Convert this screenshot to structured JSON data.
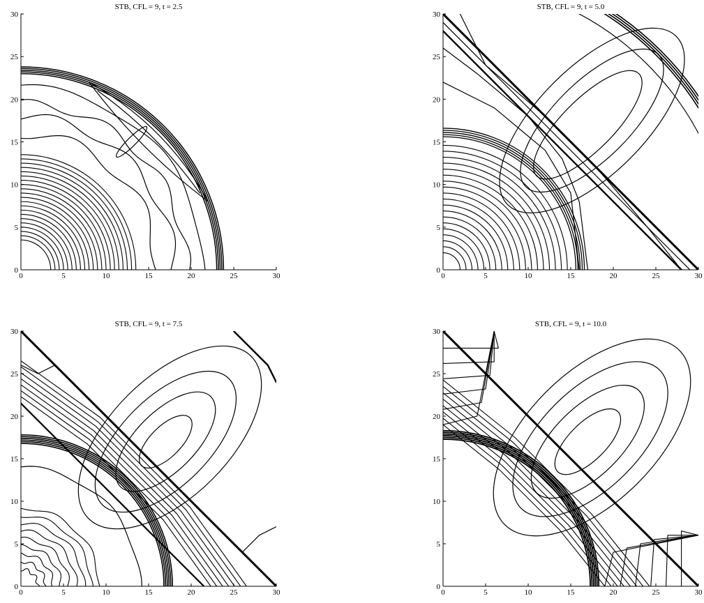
{
  "figure": {
    "panels": [
      {
        "title": "STB, CFL = 9, t = 2.5",
        "time": 2.5,
        "xlim": [
          0,
          30
        ],
        "ylim": [
          0,
          30
        ],
        "xticks": [
          "0",
          "5",
          "10",
          "15",
          "20",
          "25",
          "30"
        ],
        "yticks": [
          "0",
          "5",
          "10",
          "15",
          "20",
          "25",
          "30"
        ],
        "shock_radius": 23.5,
        "inner_front_radius": 15,
        "oblique_front": [
          [
            0,
            30
          ],
          [
            30,
            0
          ]
        ],
        "oblique_front_visible": false
      },
      {
        "title": "STB, CFL = 9, t = 5.0",
        "time": 5.0,
        "xlim": [
          0,
          30
        ],
        "ylim": [
          0,
          30
        ],
        "xticks": [
          "0",
          "5",
          "10",
          "15",
          "20",
          "25",
          "30"
        ],
        "yticks": [
          "0",
          "5",
          "10",
          "15",
          "20",
          "25",
          "30"
        ],
        "shock_radius": 36,
        "inner_front_radius": 16.5,
        "oblique_front": [
          [
            0,
            30
          ],
          [
            30,
            0
          ]
        ],
        "oblique_front_visible": true
      },
      {
        "title": "STB, CFL = 9, t = 7.5",
        "time": 7.5,
        "xlim": [
          0,
          30
        ],
        "ylim": [
          0,
          30
        ],
        "xticks": [
          "0",
          "5",
          "10",
          "15",
          "20",
          "25",
          "30"
        ],
        "yticks": [
          "0",
          "5",
          "10",
          "15",
          "20",
          "25",
          "30"
        ],
        "shock_radius": 17.5,
        "inner_front_radius": 17.5,
        "oblique_front": [
          [
            0,
            30
          ],
          [
            30,
            0
          ]
        ],
        "oblique_front_visible": true
      },
      {
        "title": "STB, CFL = 9, t = 10.0",
        "time": 10.0,
        "xlim": [
          0,
          30
        ],
        "ylim": [
          0,
          30
        ],
        "xticks": [
          "0",
          "5",
          "10",
          "15",
          "20",
          "25",
          "30"
        ],
        "yticks": [
          "0",
          "5",
          "10",
          "15",
          "20",
          "25",
          "30"
        ],
        "shock_radius": 18,
        "inner_front_radius": 18,
        "oblique_front": [
          [
            0,
            30
          ],
          [
            30,
            0
          ]
        ],
        "oblique_front_visible": true
      }
    ]
  },
  "chart_data": [
    {
      "type": "contour",
      "title": "STB, CFL = 9, t = 2.5",
      "xlim": [
        0,
        30
      ],
      "ylim": [
        0,
        30
      ],
      "xticks": [
        0,
        5,
        10,
        15,
        20,
        25,
        30
      ],
      "yticks": [
        0,
        5,
        10,
        15,
        20,
        25,
        30
      ],
      "features": {
        "circular_shock_radius": 23.5,
        "concentric_contours_radius_range": [
          3,
          14
        ],
        "lens_between": [
          [
            8,
            22
          ],
          [
            22,
            8
          ]
        ]
      }
    },
    {
      "type": "contour",
      "title": "STB, CFL = 9, t = 5.0",
      "xlim": [
        0,
        30
      ],
      "ylim": [
        0,
        30
      ],
      "xticks": [
        0,
        5,
        10,
        15,
        20,
        25,
        30
      ],
      "yticks": [
        0,
        5,
        10,
        15,
        20,
        25,
        30
      ],
      "features": {
        "oblique_discontinuity": [
          [
            0,
            30
          ],
          [
            30,
            0
          ]
        ],
        "inner_front_radius": 16.5,
        "outer_front_radius": 36,
        "concentric_contours_radius_range": [
          2,
          15
        ]
      }
    },
    {
      "type": "contour",
      "title": "STB, CFL = 9, t = 7.5",
      "xlim": [
        0,
        30
      ],
      "ylim": [
        0,
        30
      ],
      "xticks": [
        0,
        5,
        10,
        15,
        20,
        25,
        30
      ],
      "yticks": [
        0,
        5,
        10,
        15,
        20,
        25,
        30
      ],
      "features": {
        "oblique_discontinuity": [
          [
            0,
            30
          ],
          [
            30,
            0
          ]
        ],
        "front_radius": 17.5,
        "secondary_line": [
          [
            0,
            21.5
          ],
          [
            21.5,
            0
          ]
        ],
        "vortex_center": [
          17,
          17
        ]
      }
    },
    {
      "type": "contour",
      "title": "STB, CFL = 9, t = 10.0",
      "xlim": [
        0,
        30
      ],
      "ylim": [
        0,
        30
      ],
      "xticks": [
        0,
        5,
        10,
        15,
        20,
        25,
        30
      ],
      "yticks": [
        0,
        5,
        10,
        15,
        20,
        25,
        30
      ],
      "features": {
        "oblique_discontinuity": [
          [
            0,
            30
          ],
          [
            30,
            0
          ]
        ],
        "front_radius": 18,
        "vortex_center": [
          17,
          17
        ]
      }
    }
  ]
}
